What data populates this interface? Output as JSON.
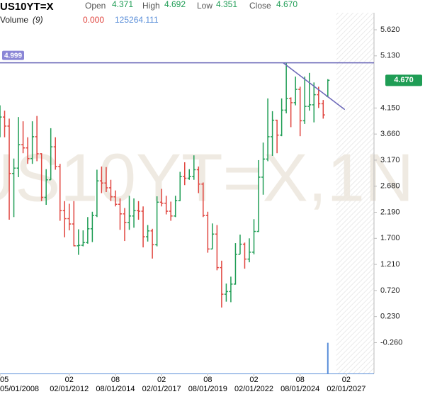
{
  "header": {
    "symbol": "US10YT=X",
    "fields": [
      {
        "label": "Open",
        "value": "4.371"
      },
      {
        "label": "High",
        "value": "4.692"
      },
      {
        "label": "Low",
        "value": "4.351"
      },
      {
        "label": "Close",
        "value": "4.670"
      }
    ],
    "volume_label": "Volume",
    "volume_period": "(9)",
    "volume_values": [
      "0.000",
      "125264.111"
    ]
  },
  "chart_data": {
    "type": "ohlc",
    "watermark": "US10YT=X,1N",
    "x": [
      "05/01/2008",
      "08/01/2008",
      "11/01/2008",
      "02/01/2009",
      "05/01/2009",
      "08/01/2009",
      "11/01/2009",
      "02/01/2010",
      "05/01/2010",
      "08/01/2010",
      "11/01/2010",
      "02/01/2011",
      "05/01/2011",
      "08/01/2011",
      "11/01/2011",
      "02/01/2012",
      "05/01/2012",
      "08/01/2012",
      "11/01/2012",
      "02/01/2013",
      "05/01/2013",
      "08/01/2013",
      "11/01/2013",
      "02/01/2014",
      "05/01/2014",
      "08/01/2014",
      "11/01/2014",
      "02/01/2015",
      "05/01/2015",
      "08/01/2015",
      "11/01/2015",
      "02/01/2016",
      "05/01/2016",
      "08/01/2016",
      "11/01/2016",
      "02/01/2017",
      "05/01/2017",
      "08/01/2017",
      "11/01/2017",
      "02/01/2018",
      "05/01/2018",
      "08/01/2018",
      "11/01/2018",
      "02/01/2019",
      "05/01/2019",
      "08/01/2019",
      "11/01/2019",
      "02/01/2020",
      "05/01/2020",
      "08/01/2020",
      "11/01/2020",
      "02/01/2021",
      "05/01/2021",
      "08/01/2021",
      "11/01/2021",
      "02/01/2022",
      "05/01/2022",
      "08/01/2022",
      "11/01/2022",
      "02/01/2023",
      "05/01/2023",
      "08/01/2023",
      "11/01/2023",
      "02/01/2024",
      "05/01/2024",
      "08/01/2024",
      "11/01/2024",
      "02/01/2025",
      "05/01/2025",
      "08/01/2025",
      "11/01/2025",
      "02/01/2026"
    ],
    "open": [
      3.73,
      3.98,
      3.81,
      2.92,
      3.02,
      3.46,
      3.4,
      3.2,
      3.61,
      3.29,
      2.47,
      2.8,
      3.42,
      3.05,
      2.22,
      2.07,
      1.97,
      1.56,
      1.57,
      1.62,
      1.88,
      2.13,
      2.78,
      2.74,
      2.65,
      2.48,
      2.34,
      2.16,
      2.0,
      2.12,
      2.22,
      2.21,
      1.73,
      1.84,
      1.58,
      2.38,
      2.36,
      2.21,
      2.12,
      2.41,
      2.86,
      2.83,
      2.86,
      2.99,
      2.72,
      2.13,
      1.5,
      1.78,
      1.15,
      0.65,
      0.7,
      0.84,
      1.4,
      1.59,
      1.31,
      1.44,
      1.83,
      2.85,
      3.19,
      3.61,
      3.92,
      3.64,
      4.11,
      4.33,
      4.25,
      4.5,
      3.91,
      4.18,
      4.21,
      4.4,
      4.23,
      4.371
    ],
    "high": [
      4.2,
      4.1,
      3.95,
      3.2,
      3.98,
      3.9,
      3.6,
      3.9,
      4.0,
      3.3,
      3.0,
      3.77,
      3.6,
      3.1,
      2.4,
      2.35,
      2.4,
      1.87,
      1.85,
      2.1,
      2.2,
      2.99,
      3.05,
      3.04,
      2.8,
      2.6,
      2.45,
      2.27,
      2.5,
      2.45,
      2.4,
      2.3,
      1.95,
      1.88,
      2.49,
      2.63,
      2.5,
      2.39,
      2.5,
      2.95,
      3.13,
      3.0,
      3.26,
      3.05,
      2.75,
      2.2,
      1.98,
      1.95,
      1.28,
      0.85,
      0.98,
      1.61,
      1.77,
      1.62,
      1.7,
      2.06,
      3.17,
      3.5,
      4.33,
      4.09,
      3.93,
      4.33,
      4.999,
      4.35,
      4.74,
      4.55,
      4.74,
      4.81,
      4.63,
      4.55,
      4.3,
      4.692
    ],
    "low": [
      3.6,
      3.6,
      2.05,
      2.1,
      2.85,
      3.3,
      3.1,
      3.1,
      3.15,
      2.4,
      2.33,
      2.8,
      2.99,
      2.03,
      1.72,
      1.85,
      1.55,
      1.39,
      1.55,
      1.6,
      1.63,
      2.1,
      2.55,
      2.57,
      2.4,
      2.3,
      1.86,
      1.65,
      1.86,
      1.9,
      2.05,
      1.53,
      1.64,
      1.32,
      1.55,
      2.3,
      2.15,
      2.03,
      2.1,
      2.4,
      2.7,
      2.8,
      2.8,
      2.55,
      2.1,
      1.43,
      1.5,
      1.1,
      0.4,
      0.51,
      0.5,
      0.83,
      1.4,
      1.13,
      1.25,
      1.4,
      1.82,
      2.52,
      3.15,
      3.25,
      3.3,
      3.62,
      4.05,
      3.79,
      4.2,
      3.62,
      3.85,
      4.1,
      3.88,
      4.15,
      3.95,
      4.351
    ],
    "close": [
      3.98,
      3.81,
      2.92,
      3.02,
      3.46,
      3.4,
      3.2,
      3.61,
      3.29,
      2.47,
      2.8,
      3.42,
      3.05,
      2.22,
      2.07,
      1.97,
      1.56,
      1.57,
      1.62,
      1.88,
      2.13,
      2.78,
      2.74,
      2.65,
      2.48,
      2.34,
      2.16,
      2.0,
      2.12,
      2.22,
      2.21,
      1.73,
      1.84,
      1.58,
      2.38,
      2.36,
      2.21,
      2.12,
      2.41,
      2.86,
      2.83,
      2.86,
      2.99,
      2.72,
      2.13,
      1.5,
      1.78,
      1.15,
      0.65,
      0.7,
      0.84,
      1.4,
      1.59,
      1.31,
      1.44,
      1.83,
      2.85,
      3.19,
      3.61,
      3.92,
      3.64,
      4.11,
      4.33,
      4.25,
      4.5,
      3.91,
      4.18,
      4.21,
      4.4,
      4.23,
      4.02,
      4.67
    ],
    "volume": [
      0,
      0,
      0,
      0,
      0,
      0,
      0,
      0,
      0,
      0,
      0,
      0,
      0,
      0,
      0,
      0,
      0,
      0,
      0,
      0,
      0,
      0,
      0,
      0,
      0,
      0,
      0,
      0,
      0,
      0,
      0,
      0,
      0,
      0,
      0,
      0,
      0,
      0,
      0,
      0,
      0,
      0,
      0,
      0,
      0,
      0,
      0,
      0,
      0,
      0,
      0,
      0,
      0,
      0,
      0,
      0,
      0,
      0,
      0,
      0,
      0,
      0,
      0,
      0,
      0,
      0,
      0,
      0,
      0,
      0,
      0,
      125264.111
    ],
    "volume_ylim": [
      0,
      130000
    ],
    "up_color": "#1f9d55",
    "down_color": "#e0443e",
    "volume_color": "#5b8fd9",
    "hline": 4.999,
    "hline_color": "#6a66b8",
    "trendline": {
      "x": [
        "09/01/2023",
        "01/01/2027"
      ],
      "values": [
        4.999,
        4.12
      ],
      "color": "#6a66b8"
    },
    "price_tag": {
      "value": 4.67,
      "label": "4.670"
    },
    "xlim": [
      "05/01/2008",
      "08/01/2028"
    ],
    "xticks": [
      {
        "value": "05/01/2008",
        "label": "05"
      },
      {
        "value": "02/01/2012",
        "label": "02"
      },
      {
        "value": "08/01/2014",
        "label": "08"
      },
      {
        "value": "02/01/2017",
        "label": "02"
      },
      {
        "value": "08/01/2019",
        "label": "08"
      },
      {
        "value": "02/01/2022",
        "label": "02"
      },
      {
        "value": "08/01/2024",
        "label": "08"
      },
      {
        "value": "02/01/2027",
        "label": "02"
      }
    ],
    "ylim": [
      -0.84,
      5.94
    ],
    "yticks": [
      {
        "value": 5.62,
        "label": "5.620"
      },
      {
        "value": 5.13,
        "label": "5.130"
      },
      {
        "value": 4.15,
        "label": "4.150"
      },
      {
        "value": 3.66,
        "label": "3.660"
      },
      {
        "value": 3.17,
        "label": "3.170"
      },
      {
        "value": 2.68,
        "label": "2.680"
      },
      {
        "value": 2.19,
        "label": "2.190"
      },
      {
        "value": 1.7,
        "label": "1.700"
      },
      {
        "value": 1.21,
        "label": "1.210"
      },
      {
        "value": 0.72,
        "label": "0.720"
      },
      {
        "value": 0.23,
        "label": "0.230"
      },
      {
        "value": -0.26,
        "label": "-0.260"
      }
    ]
  }
}
